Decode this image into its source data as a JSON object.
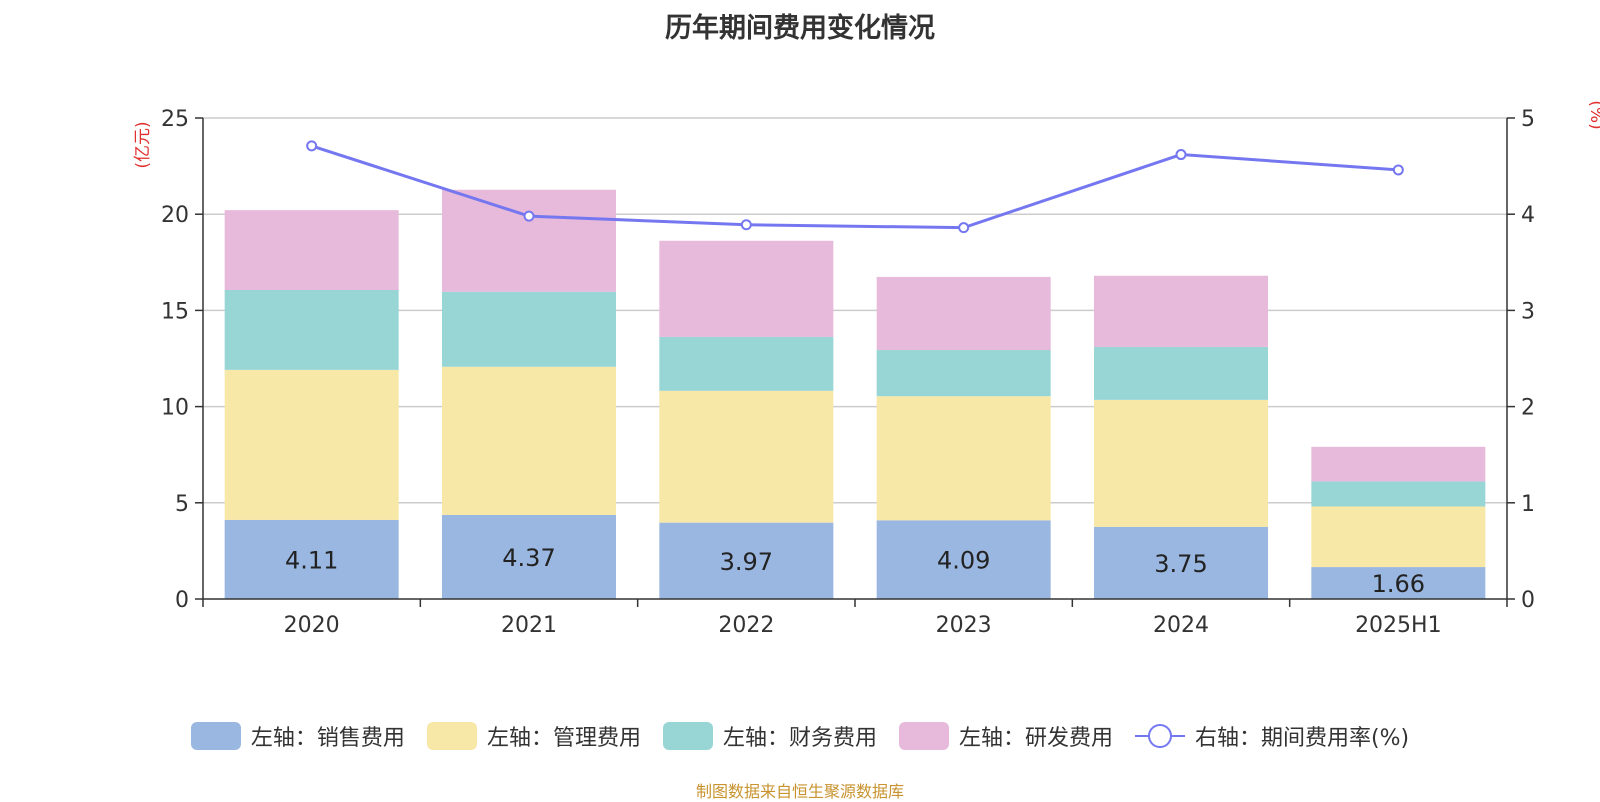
{
  "chart_data": {
    "type": "bar",
    "title": "历年期间费用变化情况",
    "categories": [
      "2020",
      "2021",
      "2022",
      "2023",
      "2024",
      "2025H1"
    ],
    "y_left_label": "(亿元)",
    "y_right_label": "(%)",
    "y_left_range": [
      0,
      25
    ],
    "y_right_range": [
      0,
      5
    ],
    "y_left_ticks": [
      0,
      5,
      10,
      15,
      20,
      25
    ],
    "y_right_ticks": [
      0,
      1,
      2,
      3,
      4,
      5
    ],
    "grid": true,
    "legend_position": "bottom",
    "series": [
      {
        "name": "左轴：销售费用",
        "type": "bar",
        "axis": "left",
        "color": "#9ab7e1",
        "values": [
          4.11,
          4.37,
          3.97,
          4.09,
          3.75,
          1.66
        ],
        "show_labels": true
      },
      {
        "name": "左轴：管理费用",
        "type": "bar",
        "axis": "left",
        "color": "#f7e8a7",
        "values": [
          7.8,
          7.7,
          6.85,
          6.45,
          6.6,
          3.15
        ]
      },
      {
        "name": "左轴：财务费用",
        "type": "bar",
        "axis": "left",
        "color": "#98d5d5",
        "values": [
          4.15,
          3.9,
          2.8,
          2.4,
          2.75,
          1.3
        ]
      },
      {
        "name": "左轴：研发费用",
        "type": "bar",
        "axis": "left",
        "color": "#e7b9da",
        "values": [
          4.15,
          5.3,
          5.0,
          3.8,
          3.7,
          1.8
        ]
      },
      {
        "name": "右轴：期间费用率(%)",
        "type": "line",
        "axis": "right",
        "color": "#7577f0",
        "values": [
          4.71,
          3.98,
          3.89,
          3.86,
          4.62,
          4.46
        ]
      }
    ]
  },
  "footer": "制图数据来自恒生聚源数据库"
}
